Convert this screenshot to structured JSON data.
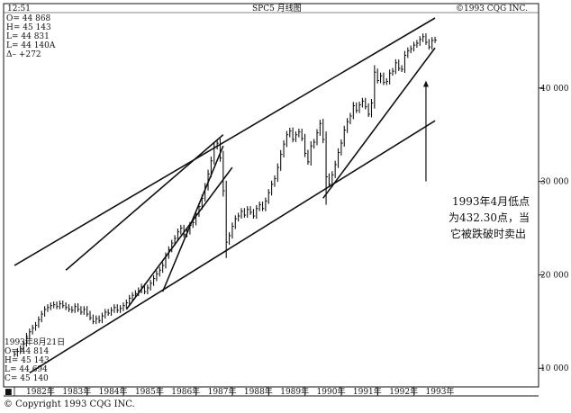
{
  "header": {
    "time": "12:51",
    "title": "SPC5 月线图",
    "copyright": "©1993 CQG INC."
  },
  "quote_top": [
    "O= 44 868",
    "H= 45 143",
    "L= 44 831",
    "L= 44 140A",
    "Δ–    +272"
  ],
  "quote_bottom": [
    "1993年8月21日",
    "O= 44 814",
    "H= 45 143",
    "L= 44 694",
    "C= 45 140"
  ],
  "annotation": [
    "1993年4月低点",
    "为432.30点，当",
    "它被跌破时卖出"
  ],
  "footer": {
    "marker": "■",
    "copyright": "© Copyright 1993 CQG INC."
  },
  "chart_data": {
    "type": "bar",
    "title": "SPC5 月线图",
    "x": {
      "start": "1982-01",
      "end": "1993-08",
      "tick_labels": [
        "1982年",
        "1983年",
        "1984年",
        "1985年",
        "1986年",
        "1987年",
        "1988年",
        "1989年",
        "1990年",
        "1991年",
        "1992年",
        "1993年"
      ]
    },
    "y": {
      "ylim": [
        8000,
        47500
      ],
      "tick_values": [
        10000,
        20000,
        30000,
        40000
      ],
      "tick_labels": [
        "10 000",
        "20 000",
        "30 000",
        "40 000"
      ]
    },
    "grid": false,
    "series": [
      {
        "close": [
          11500,
          11800,
          12100,
          12600,
          13400,
          13900,
          14300,
          14600,
          15200,
          15800,
          16300,
          16500,
          16700,
          16800,
          16600,
          16900,
          16700,
          16500,
          16300,
          16200,
          16600,
          16300,
          16000,
          16300,
          15800,
          15400,
          15000,
          15300,
          15100,
          15600,
          16000,
          15900,
          16200,
          16500,
          16200,
          16400,
          16700,
          17000,
          17500,
          17800,
          18000,
          18300,
          18700,
          18200,
          18600,
          19100,
          19600,
          20100,
          20500,
          21000,
          22000,
          22700,
          23400,
          23900,
          24600,
          25000,
          24300,
          24600,
          25300,
          25600,
          26500,
          27300,
          28200,
          29400,
          30800,
          32200,
          33700,
          34100,
          32500,
          29000,
          23500,
          24200,
          25200,
          26000,
          26300,
          26800,
          26400,
          27000,
          26700,
          26300,
          27100,
          27500,
          27100,
          27900,
          28800,
          29700,
          30300,
          31500,
          32900,
          34000,
          35000,
          35400,
          34500,
          35000,
          35300,
          34600,
          33000,
          32100,
          33800,
          34200,
          35200,
          36200,
          34500,
          30500,
          29700,
          30700,
          31800,
          33100,
          34100,
          35500,
          36400,
          37000,
          38100,
          37600,
          38200,
          38600,
          38000,
          37200,
          38400,
          41700,
          40800,
          41300,
          40600,
          40700,
          41600,
          41800,
          42700,
          42100,
          42000,
          43500,
          44000,
          44200,
          44600,
          44800,
          45200,
          45500,
          44900,
          44400,
          45100,
          45140
        ],
        "low": [
          null,
          null,
          null,
          null,
          null,
          null,
          null,
          null,
          null,
          null,
          null,
          null,
          null,
          null,
          null,
          null,
          null,
          null,
          null,
          null,
          null,
          null,
          null,
          null,
          null,
          null,
          null,
          null,
          null,
          null,
          null,
          null,
          null,
          null,
          null,
          null,
          null,
          null,
          null,
          null,
          null,
          null,
          null,
          null,
          null,
          null,
          null,
          null,
          null,
          null,
          null,
          null,
          null,
          null,
          null,
          null,
          null,
          null,
          null,
          null,
          null,
          null,
          null,
          null,
          null,
          null,
          null,
          null,
          null,
          null,
          21800,
          null,
          null,
          null,
          null,
          null,
          null,
          null,
          null,
          null,
          null,
          null,
          null,
          null,
          null,
          null,
          null,
          null,
          null,
          null,
          null,
          null,
          null,
          null,
          null,
          null,
          null,
          null,
          null,
          null,
          null,
          null,
          null,
          27500,
          null,
          null,
          null,
          null,
          null,
          null,
          null,
          null,
          null,
          null,
          null,
          null,
          null,
          null,
          null,
          null,
          null,
          null,
          null,
          null,
          null,
          null,
          null,
          null,
          null,
          null,
          null,
          null,
          null,
          null,
          null,
          null,
          null,
          null,
          null,
          null
        ]
      }
    ],
    "trendlines": [
      {
        "from": [
          "1982-01",
          21000
        ],
        "to": [
          "1993-08",
          47500
        ]
      },
      {
        "from": [
          "1982-06",
          9500
        ],
        "to": [
          "1993-08",
          36500
        ]
      },
      {
        "from": [
          "1987-10",
          35000
        ],
        "to": [
          "1983-06",
          20500
        ]
      },
      {
        "from": [
          "1985-02",
          16300
        ],
        "to": [
          "1988-01",
          31500
        ]
      },
      {
        "from": [
          "1986-02",
          18200
        ],
        "to": [
          "1987-10",
          33800
        ]
      },
      {
        "from": [
          "1990-07",
          28200
        ],
        "to": [
          "1993-08",
          44300
        ]
      }
    ],
    "arrow": {
      "x": "1993-05",
      "from_y": 30000,
      "to_y": 40800
    }
  }
}
